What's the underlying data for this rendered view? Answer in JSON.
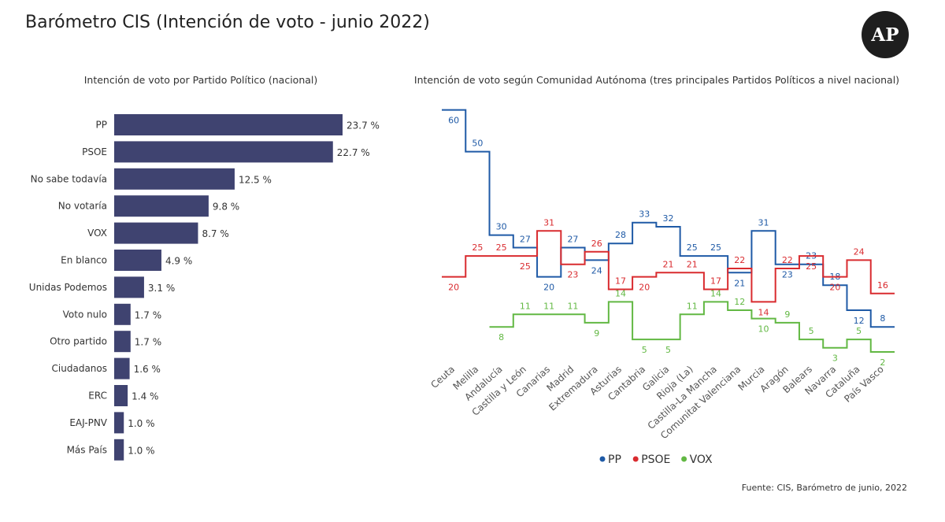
{
  "title": "Barómetro CIS (Intención de voto - junio 2022)",
  "logo_text": "AP",
  "source": "Fuente: CIS, Barómetro de junio, 2022",
  "colors": {
    "bar": "#3f4370",
    "pp": "#1f5aa6",
    "psoe": "#d92b2f",
    "vox": "#62b843"
  },
  "chart_data": [
    {
      "type": "bar",
      "orientation": "horizontal",
      "title": "Intención de voto por Partido Político (nacional)",
      "categories": [
        "PP",
        "PSOE",
        "No sabe todavía",
        "No votaría",
        "VOX",
        "En blanco",
        "Unidas Podemos",
        "Voto nulo",
        "Otro partido",
        "Ciudadanos",
        "ERC",
        "EAJ-PNV",
        "Más País"
      ],
      "values": [
        23.7,
        22.7,
        12.5,
        9.8,
        8.7,
        4.9,
        3.1,
        1.7,
        1.7,
        1.6,
        1.4,
        1.0,
        1.0
      ],
      "value_labels": [
        "23.7 %",
        "22.7 %",
        "12.5 %",
        "9.8 %",
        "8.7 %",
        "4.9 %",
        "3.1 %",
        "1.7 %",
        "1.7 %",
        "1.6 %",
        "1.4 %",
        "1.0 %",
        "1.0 %"
      ],
      "xlim": [
        0,
        23.7
      ]
    },
    {
      "type": "line",
      "step": true,
      "title": "Intención de voto según Comunidad Autónoma (tres principales Partidos Políticos a nivel nacional)",
      "categories": [
        "Ceuta",
        "Melilla",
        "Andalucía",
        "Castilla y León",
        "Canarias",
        "Madrid",
        "Extremadura",
        "Asturias",
        "Cantabria",
        "Galicia",
        "Rioja (La)",
        "Castilla-La Mancha",
        "Comunitat Valenciana",
        "Murcia",
        "Aragón",
        "Balears",
        "Navarra",
        "Cataluña",
        "País Vasco"
      ],
      "series": [
        {
          "name": "PP",
          "color": "#1f5aa6",
          "values": [
            60,
            50,
            30,
            27,
            20,
            27,
            24,
            28,
            33,
            32,
            25,
            25,
            21,
            31,
            23,
            23,
            18,
            12,
            8
          ]
        },
        {
          "name": "PSOE",
          "color": "#d92b2f",
          "values": [
            20,
            25,
            25,
            25,
            31,
            23,
            26,
            17,
            20,
            21,
            21,
            17,
            22,
            14,
            22,
            25,
            20,
            24,
            16
          ]
        },
        {
          "name": "VOX",
          "color": "#62b843",
          "values": [
            null,
            null,
            8,
            11,
            11,
            11,
            9,
            14,
            5,
            5,
            11,
            14,
            12,
            10,
            9,
            5,
            3,
            5,
            2
          ]
        }
      ],
      "legend": [
        "PP",
        "PSOE",
        "VOX"
      ],
      "legend_position": "bottom",
      "grid": false
    }
  ]
}
